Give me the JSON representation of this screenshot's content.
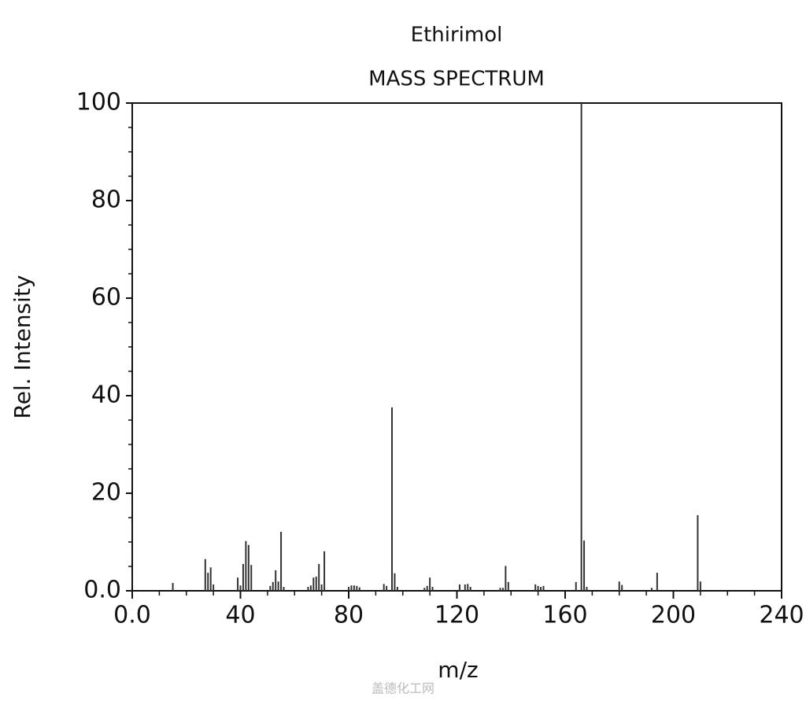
{
  "chart_data": {
    "type": "bar",
    "title": "Ethirimol",
    "subtitle": "MASS SPECTRUM",
    "x_label": "m/z",
    "y_label": "Rel. Intensity",
    "watermark": "盖德化工网",
    "color": "#333333",
    "x": [
      15,
      27,
      28,
      29,
      30,
      39,
      40,
      41,
      42,
      43,
      44,
      51,
      52,
      53,
      54,
      55,
      56,
      65,
      66,
      67,
      68,
      69,
      70,
      71,
      80,
      81,
      82,
      83,
      84,
      93,
      94,
      96,
      97,
      98,
      108,
      109,
      110,
      111,
      121,
      123,
      124,
      125,
      136,
      137,
      138,
      139,
      149,
      150,
      151,
      152,
      164,
      166,
      167,
      168,
      180,
      181,
      192,
      194,
      209,
      210
    ],
    "values": [
      1.6,
      6.5,
      3.7,
      4.8,
      1.3,
      2.7,
      1.1,
      5.5,
      10.2,
      9.4,
      5.3,
      1,
      1.8,
      4.2,
      1.9,
      12.1,
      0.8,
      0.8,
      1.1,
      2.7,
      2.9,
      5.5,
      1.3,
      8.1,
      0.8,
      1.1,
      1.1,
      1,
      0.7,
      1.4,
      1,
      37.6,
      3.6,
      0.8,
      0.6,
      1,
      2.7,
      0.8,
      1.3,
      1.3,
      1.4,
      0.8,
      0.6,
      0.6,
      5.1,
      1.8,
      1.3,
      1,
      0.8,
      1,
      1.8,
      100,
      10.3,
      0.8,
      1.9,
      1.2,
      0.6,
      3.7,
      15.5,
      1.9
    ],
    "xlim": [
      0,
      240
    ],
    "xticks": [
      {
        "value": 0,
        "label": "0.0"
      },
      40,
      80,
      120,
      160,
      200,
      240
    ],
    "ylim": [
      0,
      100
    ],
    "yticks": [
      {
        "value": 0,
        "label": "0.0"
      },
      20,
      40,
      60,
      80,
      100
    ]
  }
}
